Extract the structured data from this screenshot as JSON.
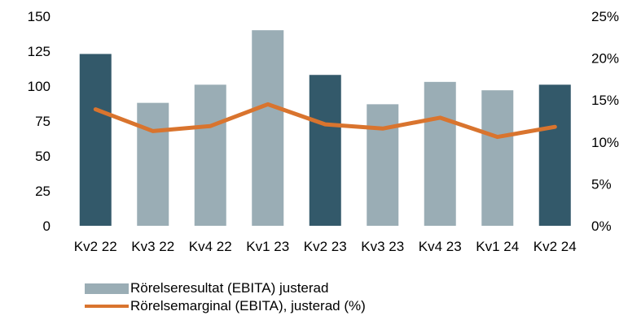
{
  "chart_data": {
    "type": "bar",
    "categories": [
      "Kv2 22",
      "Kv3 22",
      "Kv4 22",
      "Kv1 23",
      "Kv2 23",
      "Kv3 23",
      "Kv4 23",
      "Kv1 24",
      "Kv2 24"
    ],
    "series": [
      {
        "name": "Rörelseresultat (EBITA) justerad",
        "type": "bar",
        "axis": "left",
        "values": [
          123,
          88,
          101,
          140,
          108,
          87,
          103,
          97,
          101
        ],
        "highlighted": [
          true,
          false,
          false,
          false,
          true,
          false,
          false,
          false,
          true
        ]
      },
      {
        "name": "Rörelsemarginal (EBITA), justerad (%)",
        "type": "line",
        "axis": "right",
        "values": [
          13.9,
          11.3,
          11.9,
          14.5,
          12.1,
          11.6,
          12.9,
          10.6,
          11.8
        ]
      }
    ],
    "y_left": {
      "range": [
        0,
        150
      ],
      "ticks": [
        "0",
        "25",
        "50",
        "75",
        "100",
        "125",
        "150"
      ]
    },
    "y_right": {
      "range": [
        0,
        25
      ],
      "ticks": [
        "0%",
        "5%",
        "10%",
        "15%",
        "20%",
        "25%"
      ]
    },
    "colors": {
      "bar_light": "#9aadb5",
      "bar_dark": "#33596a",
      "line": "#d9742e"
    },
    "legend_position": "bottom-left",
    "grid": false
  }
}
